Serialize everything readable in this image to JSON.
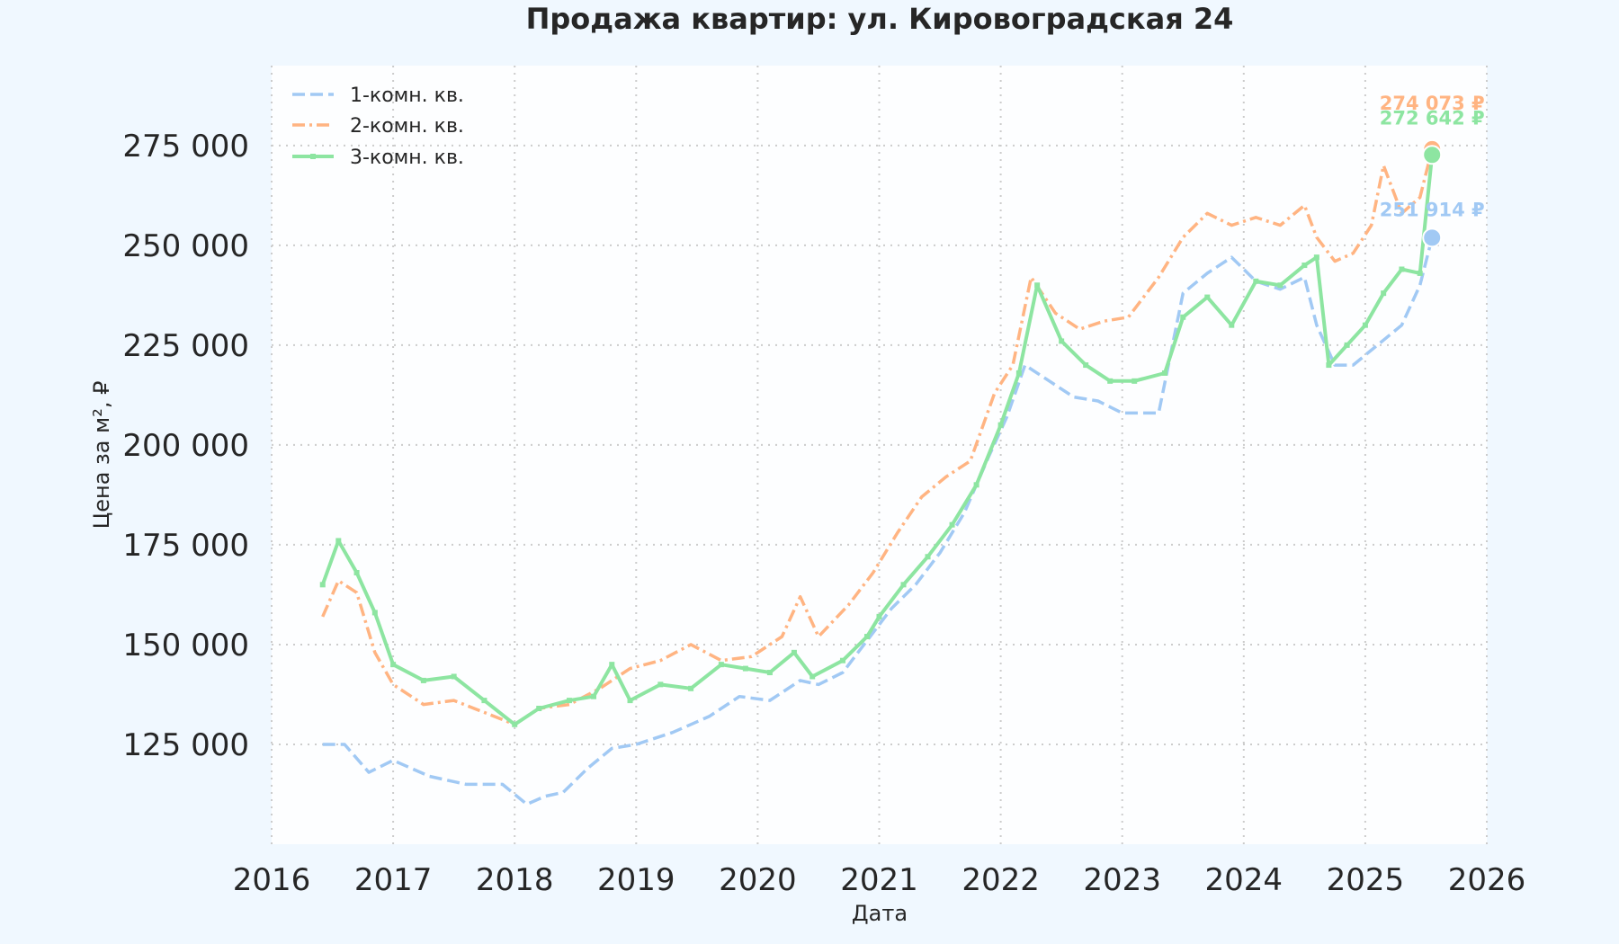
{
  "chart_data": {
    "type": "line",
    "title": "Продажа квартир: ул. Кировоградская 24",
    "xlabel": "Дата",
    "ylabel": "Цена за м², ₽",
    "x_ticks": [
      "2016",
      "2017",
      "2018",
      "2019",
      "2020",
      "2021",
      "2022",
      "2023",
      "2024",
      "2025",
      "2026"
    ],
    "y_ticks": [
      "125 000",
      "150 000",
      "175 000",
      "200 000",
      "225 000",
      "250 000",
      "275 000"
    ],
    "y_tick_values": [
      125000,
      150000,
      175000,
      200000,
      225000,
      250000,
      275000
    ],
    "xlim": [
      2016.0,
      2026.0
    ],
    "ylim": [
      100000,
      295000
    ],
    "grid": true,
    "legend_position": "top-left",
    "colors": {
      "background": "#f0f8ff",
      "plot_background": "#fdfeff",
      "grid": "#cccccc",
      "series1": "#a1c9f4",
      "series2": "#ffb482",
      "series3": "#8de5a1"
    },
    "series": [
      {
        "name": "1-комн. кв.",
        "style": "dashed",
        "end_label": "251 914 ₽",
        "x": [
          2016.42,
          2016.6,
          2016.8,
          2017.0,
          2017.3,
          2017.6,
          2017.9,
          2018.1,
          2018.25,
          2018.4,
          2018.6,
          2018.8,
          2019.0,
          2019.3,
          2019.6,
          2019.85,
          2020.1,
          2020.35,
          2020.5,
          2020.7,
          2020.9,
          2021.1,
          2021.3,
          2021.5,
          2021.7,
          2021.9,
          2022.05,
          2022.2,
          2022.4,
          2022.6,
          2022.8,
          2023.0,
          2023.3,
          2023.5,
          2023.7,
          2023.9,
          2024.1,
          2024.3,
          2024.5,
          2024.6,
          2024.75,
          2024.9,
          2025.1,
          2025.3,
          2025.45,
          2025.55
        ],
        "y": [
          125000,
          125000,
          118000,
          121000,
          117000,
          115000,
          115000,
          110000,
          112000,
          113000,
          119000,
          124000,
          125000,
          128000,
          132000,
          137000,
          136000,
          141000,
          140000,
          143000,
          151000,
          159000,
          165000,
          173000,
          183000,
          197000,
          207000,
          220000,
          216000,
          212000,
          211000,
          208000,
          208000,
          238000,
          243000,
          247000,
          241000,
          239000,
          242000,
          230000,
          220000,
          220000,
          225000,
          230000,
          240000,
          251914
        ]
      },
      {
        "name": "2-комн. кв.",
        "style": "dashdot",
        "end_label": "274 073 ₽",
        "x": [
          2016.42,
          2016.55,
          2016.7,
          2016.85,
          2017.0,
          2017.25,
          2017.5,
          2017.75,
          2018.0,
          2018.2,
          2018.45,
          2018.7,
          2018.95,
          2019.2,
          2019.45,
          2019.7,
          2019.95,
          2020.2,
          2020.35,
          2020.5,
          2020.75,
          2020.95,
          2021.15,
          2021.35,
          2021.55,
          2021.75,
          2021.95,
          2022.1,
          2022.25,
          2022.45,
          2022.65,
          2022.85,
          2023.05,
          2023.3,
          2023.5,
          2023.7,
          2023.9,
          2024.1,
          2024.3,
          2024.5,
          2024.6,
          2024.75,
          2024.9,
          2025.05,
          2025.15,
          2025.3,
          2025.45,
          2025.55
        ],
        "y": [
          157000,
          166000,
          163000,
          148000,
          140000,
          135000,
          136000,
          133000,
          130000,
          134000,
          135000,
          139000,
          144000,
          146000,
          150000,
          146000,
          147000,
          152000,
          162000,
          152000,
          160000,
          168000,
          178000,
          187000,
          192000,
          196000,
          213000,
          220000,
          242000,
          233000,
          229000,
          231000,
          232000,
          242000,
          252000,
          258000,
          255000,
          257000,
          255000,
          260000,
          252000,
          246000,
          248000,
          255000,
          270000,
          258000,
          262000,
          274073
        ]
      },
      {
        "name": "3-комн. кв.",
        "style": "solid",
        "end_label": "272 642 ₽",
        "x": [
          2016.42,
          2016.55,
          2016.7,
          2016.85,
          2017.0,
          2017.25,
          2017.5,
          2017.75,
          2018.0,
          2018.2,
          2018.45,
          2018.65,
          2018.8,
          2018.95,
          2019.2,
          2019.45,
          2019.7,
          2019.9,
          2020.1,
          2020.3,
          2020.45,
          2020.7,
          2020.9,
          2021.0,
          2021.2,
          2021.4,
          2021.6,
          2021.8,
          2022.0,
          2022.15,
          2022.3,
          2022.5,
          2022.7,
          2022.9,
          2023.1,
          2023.35,
          2023.5,
          2023.7,
          2023.9,
          2024.1,
          2024.3,
          2024.5,
          2024.6,
          2024.7,
          2024.85,
          2025.0,
          2025.15,
          2025.3,
          2025.45,
          2025.55
        ],
        "y": [
          165000,
          176000,
          168000,
          158000,
          145000,
          141000,
          142000,
          136000,
          130000,
          134000,
          136000,
          137000,
          145000,
          136000,
          140000,
          139000,
          145000,
          144000,
          143000,
          148000,
          142000,
          146000,
          152000,
          157000,
          165000,
          172000,
          180000,
          190000,
          205000,
          218000,
          240000,
          226000,
          220000,
          216000,
          216000,
          218000,
          232000,
          237000,
          230000,
          241000,
          240000,
          245000,
          247000,
          220000,
          225000,
          230000,
          238000,
          244000,
          243000,
          272642
        ]
      }
    ]
  }
}
